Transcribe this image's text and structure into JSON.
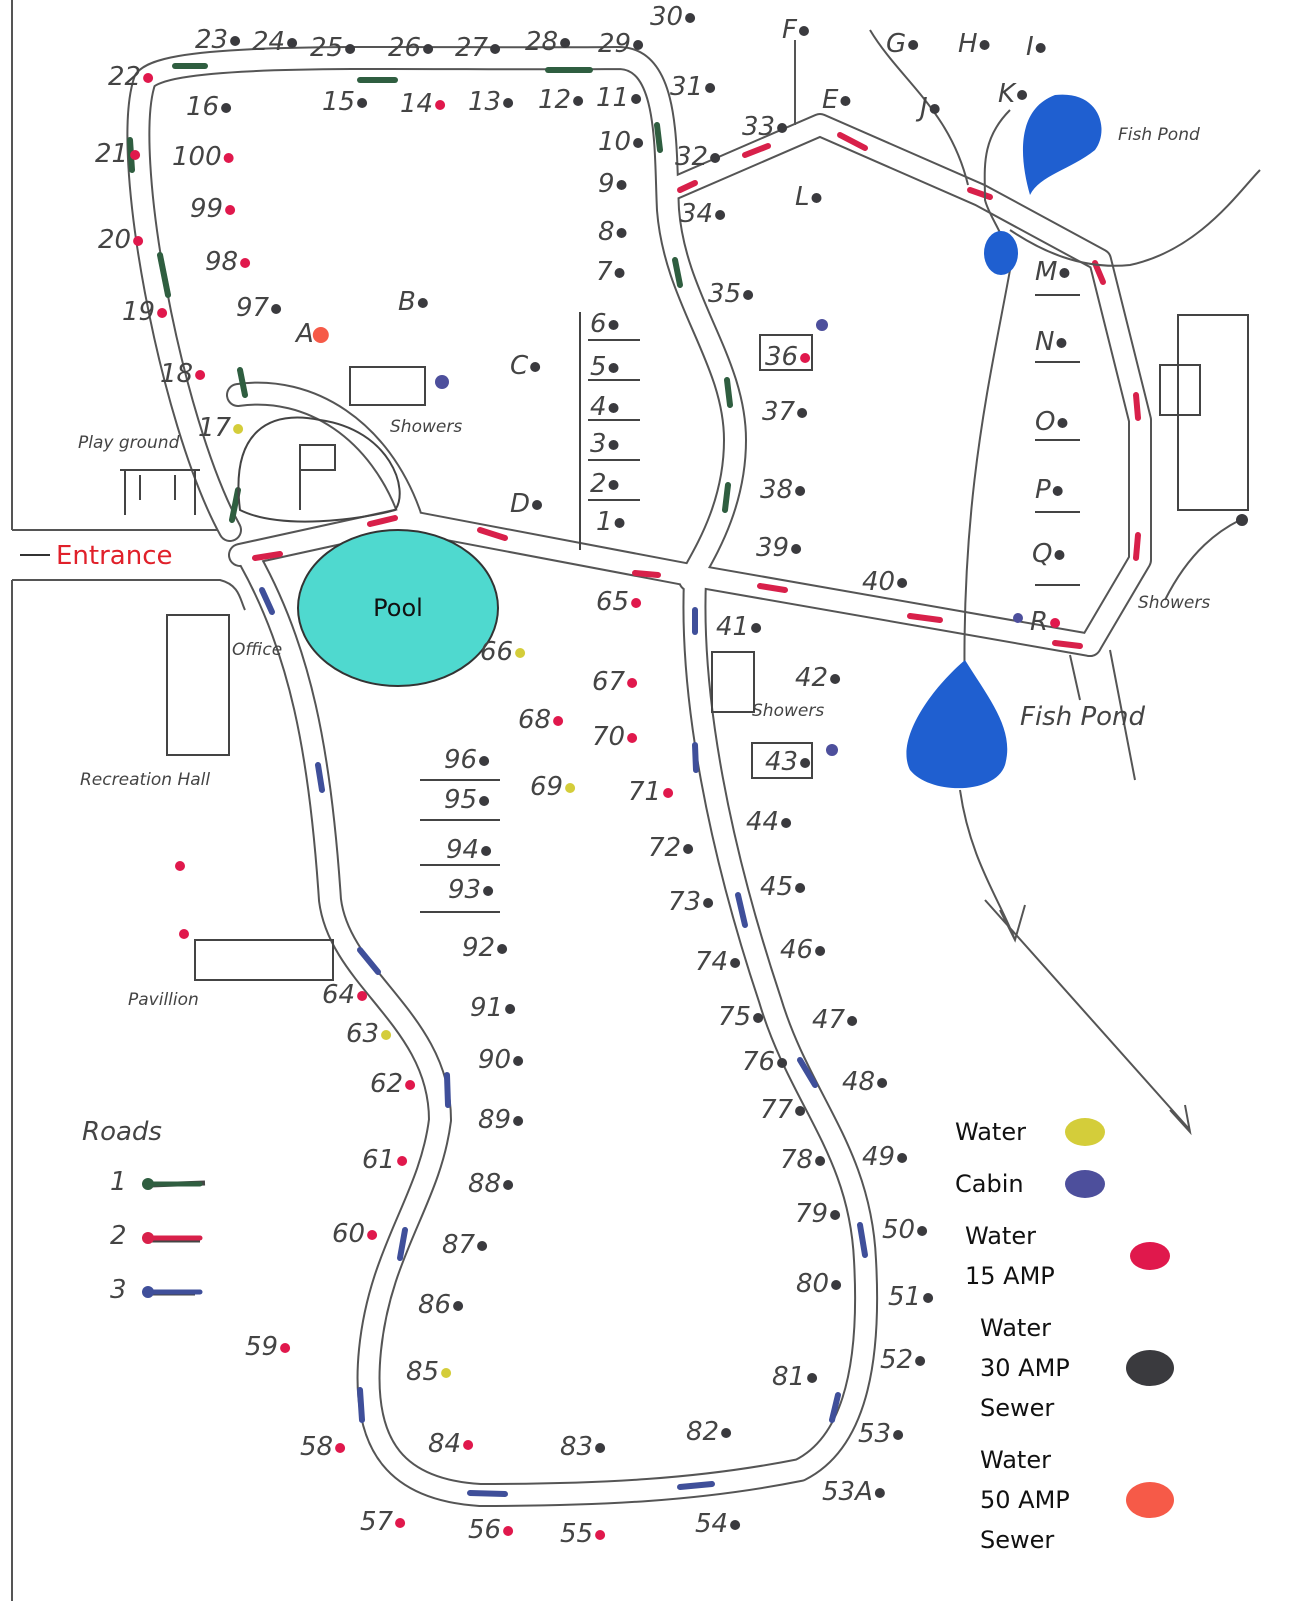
{
  "labels": {
    "entrance": "Entrance",
    "pool": "Pool",
    "office": "Office",
    "playground": "Play ground",
    "showers_top": "Showers",
    "showers_mid": "Showers",
    "showers_right": "Showers",
    "recreation_hall": "Recreation Hall",
    "pavillion": "Pavillion",
    "fish_pond_top": "Fish Pond",
    "fish_pond_bottom": "Fish Pond"
  },
  "sites": [
    "22",
    "23",
    "24",
    "25",
    "26",
    "27",
    "28",
    "29",
    "30",
    "31",
    "16",
    "15",
    "14",
    "13",
    "12",
    "11",
    "10",
    "9",
    "8",
    "7",
    "6",
    "5",
    "4",
    "3",
    "2",
    "1",
    "21",
    "100",
    "99",
    "98",
    "20",
    "19",
    "97",
    "A",
    "B",
    "C",
    "D",
    "18",
    "17",
    "F",
    "G",
    "H",
    "I",
    "J",
    "K",
    "E",
    "L",
    "33",
    "32",
    "34",
    "35",
    "36",
    "37",
    "38",
    "39",
    "40",
    "41",
    "42",
    "43",
    "44",
    "45",
    "46",
    "47",
    "48",
    "49",
    "50",
    "51",
    "52",
    "53",
    "53A",
    "54",
    "55",
    "56",
    "57",
    "58",
    "59",
    "60",
    "61",
    "62",
    "63",
    "64",
    "65",
    "66",
    "67",
    "68",
    "69",
    "70",
    "71",
    "72",
    "73",
    "74",
    "75",
    "76",
    "77",
    "78",
    "79",
    "80",
    "81",
    "82",
    "83",
    "84",
    "85",
    "86",
    "87",
    "88",
    "89",
    "90",
    "91",
    "92",
    "93",
    "94",
    "95",
    "96",
    "M",
    "N",
    "O",
    "P",
    "Q",
    "R"
  ],
  "roads": {
    "title": "Roads",
    "items": [
      {
        "label": "1",
        "color": "#2f5e40"
      },
      {
        "label": "2",
        "color": "#d8204a"
      },
      {
        "label": "3",
        "color": "#3f4f9a"
      }
    ]
  },
  "legend": [
    {
      "lines": [
        "Water"
      ],
      "color": "#d4cd3a"
    },
    {
      "lines": [
        "Cabin"
      ],
      "color": "#4d4f9c"
    },
    {
      "lines": [
        "Water",
        "15 AMP"
      ],
      "color": "#e0184c"
    },
    {
      "lines": [
        "Water",
        "30 AMP",
        "Sewer"
      ],
      "color": "#3a3a3e"
    },
    {
      "lines": [
        "Water",
        "50 AMP",
        "Sewer"
      ],
      "color": "#f65a48"
    }
  ]
}
